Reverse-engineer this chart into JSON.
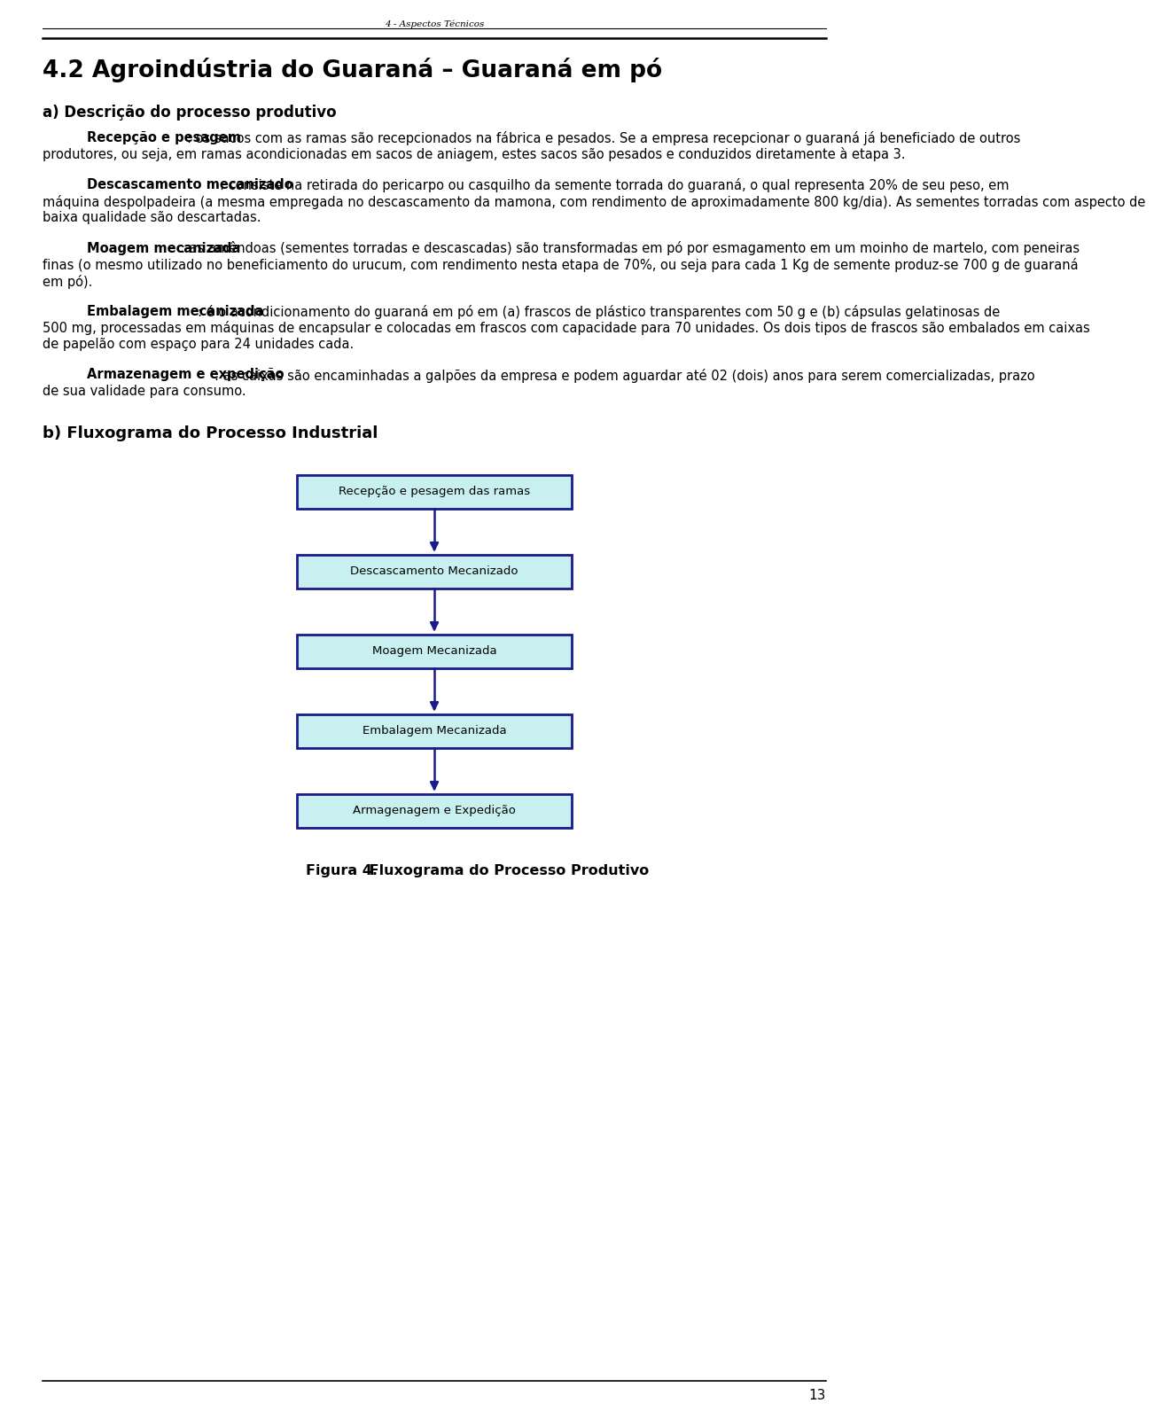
{
  "header_text": "4 - Aspectos Técnicos",
  "title": "4.2 Agroindústria do Guaraná – Guaraná em pó",
  "section_a_title": "a) Descrição do processo produtivo",
  "para1_bold": "Recepção e pesagem",
  "para1_rest": ": os sacos com as ramas são recepcionados na fábrica e pesados. Se a empresa recepcionar o guaraná já beneficiado de outros produtores, ou seja, em ramas acondicionadas em sacos de aniagem, estes sacos são pesados e conduzidos diretamente à etapa 3.",
  "para2_bold": "Descascamento mecanizado",
  "para2_rest": ": consiste na retirada do pericarpo ou casquilho da semente torrada do guaraná, o qual representa 20% de seu peso, em máquina despolpadeira (a mesma empregada no descascamento da mamona, com rendimento de aproximadamente 800 kg/dia). As sementes torradas com aspecto de baixa qualidade são descartadas.",
  "para3_bold": "Moagem mecanizada",
  "para3_rest": ": as amêndoas (sementes torradas e descascadas) são transformadas em pó por esmagamento em um moinho de martelo, com peneiras finas (o mesmo utilizado no beneficiamento do urucum, com rendimento nesta etapa de 70%, ou seja para cada 1 Kg de semente produz-se 700 g de guaraná em pó).",
  "para4_bold": "Embalagem mecanizada",
  "para4_rest": ": é o acondicionamento do guaraná em pó em (a) frascos de plástico transparentes com 50 g e (b) cápsulas gelatinosas de 500 mg, processadas em máquinas de encapsular e colocadas em frascos com capacidade para 70 unidades. Os dois tipos de frascos são embalados em caixas de papelão com espaço para 24 unidades cada.",
  "para5_bold": "Armazenagem e expedição",
  "para5_rest": ": as caixas são encaminhadas a galpões da empresa e podem aguardar até 02 (dois) anos para serem comercializadas, prazo de sua validade para consumo.",
  "section_b_title": "b) Fluxograma do Processo Industrial",
  "flowchart_boxes": [
    "Recepção e pesagem das ramas",
    "Descascamento Mecanizado",
    "Moagem Mecanizada",
    "Embalagem Mecanizada",
    "Armagenagem e Expedição"
  ],
  "figure_caption_bold": "Figura 4.",
  "figure_caption_rest": " Fluxograma do Processo Produtivo",
  "page_number": "13",
  "box_fill_color": "#c8f0f0",
  "box_edge_color": "#1a1a8c",
  "arrow_color": "#1a1a8c",
  "text_color": "#000000"
}
